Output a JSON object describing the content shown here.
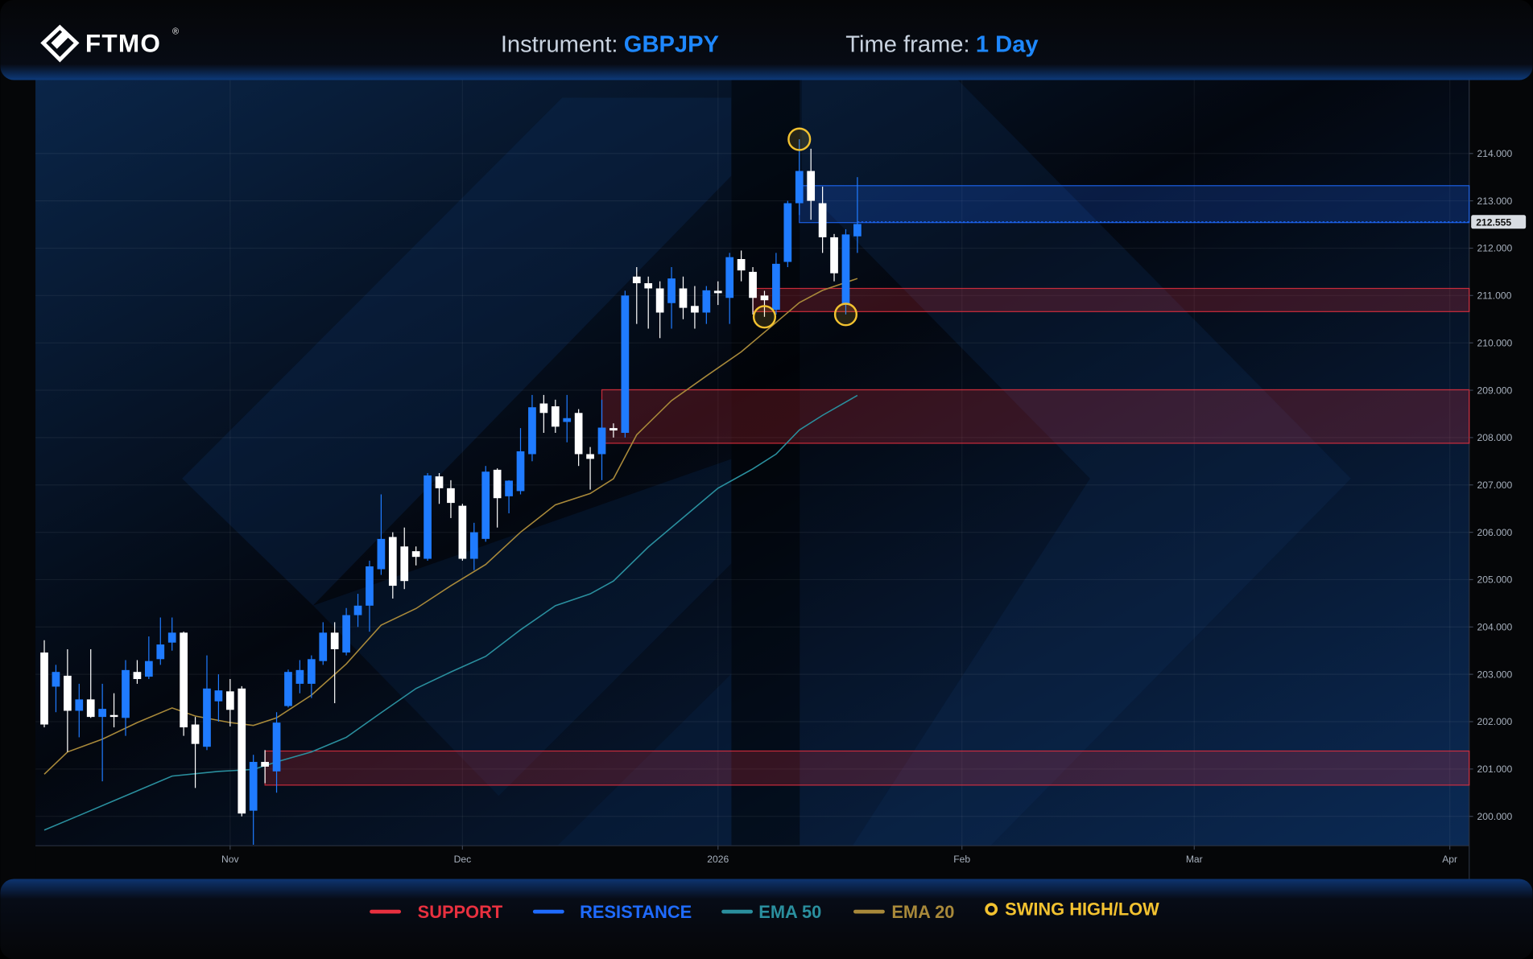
{
  "header": {
    "logo": "FTMO",
    "logo_mark": "®",
    "instrument_label": "Instrument:",
    "instrument": "GBPJPY",
    "timeframe_label": "Time frame:",
    "timeframe": "1 Day"
  },
  "chart_data": {
    "type": "candlestick",
    "up_color": "#1f7bff",
    "down_color": "#ffffff",
    "open": [
      203.46,
      202.74,
      202.97,
      202.23,
      202.47,
      202.1,
      202.14,
      202.08,
      203.05,
      202.95,
      203.32,
      203.67,
      203.88,
      201.94,
      201.47,
      202.43,
      202.64,
      202.7,
      200.12,
      201.15,
      200.95,
      202.33,
      202.8,
      202.8,
      203.28,
      203.88,
      203.46,
      204.25,
      204.45,
      205.22,
      205.9,
      205.7,
      205.6,
      205.44,
      207.18,
      206.93,
      206.56,
      205.44,
      205.86,
      207.32,
      206.76,
      206.87,
      207.65,
      208.72,
      208.66,
      208.33,
      208.52,
      207.65,
      207.65,
      208.2,
      208.1,
      211.4,
      211.26,
      211.15,
      210.84,
      211.15,
      210.78,
      210.64,
      211.1,
      210.95,
      211.77,
      211.5,
      211.0,
      210.7,
      211.71,
      212.95,
      213.63,
      212.95,
      212.23,
      210.8,
      212.25
    ],
    "high": [
      203.72,
      203.2,
      203.53,
      202.8,
      203.53,
      202.8,
      202.6,
      203.3,
      203.3,
      203.8,
      204.2,
      204.2,
      203.9,
      202.1,
      203.4,
      203.0,
      202.9,
      202.75,
      201.3,
      201.4,
      202.2,
      203.1,
      203.3,
      203.4,
      204.1,
      204.1,
      204.4,
      204.7,
      205.4,
      206.8,
      206.0,
      206.1,
      205.7,
      207.25,
      207.25,
      207.1,
      206.6,
      206.2,
      207.4,
      207.35,
      207.1,
      208.2,
      208.9,
      208.9,
      208.8,
      208.9,
      208.6,
      207.8,
      208.8,
      208.3,
      211.1,
      211.6,
      211.4,
      211.3,
      211.6,
      211.4,
      211.2,
      211.2,
      211.3,
      211.9,
      211.95,
      211.6,
      211.1,
      211.9,
      213.0,
      214.3,
      214.1,
      213.3,
      212.3,
      212.4,
      213.5
    ],
    "low": [
      201.88,
      202.2,
      201.36,
      201.67,
      202.08,
      200.74,
      201.88,
      201.7,
      202.8,
      202.9,
      203.2,
      203.5,
      201.7,
      200.6,
      201.4,
      202.0,
      201.9,
      200.0,
      199.4,
      200.7,
      200.5,
      202.3,
      202.6,
      202.5,
      203.2,
      202.39,
      203.4,
      204.0,
      203.9,
      205.1,
      204.6,
      204.8,
      205.3,
      205.4,
      206.6,
      206.3,
      205.4,
      205.2,
      205.8,
      206.1,
      206.4,
      206.8,
      207.5,
      208.1,
      208.1,
      207.9,
      207.4,
      206.9,
      207.1,
      208.0,
      208.0,
      210.4,
      210.3,
      210.1,
      210.3,
      210.5,
      210.3,
      210.4,
      210.8,
      210.4,
      211.3,
      210.6,
      210.55,
      210.6,
      211.6,
      212.7,
      212.6,
      211.9,
      211.3,
      210.6,
      211.9
    ],
    "close": [
      201.94,
      203.05,
      202.23,
      202.47,
      202.1,
      202.27,
      202.1,
      203.09,
      202.9,
      203.28,
      203.63,
      203.88,
      201.88,
      201.53,
      202.7,
      202.66,
      202.25,
      200.06,
      201.15,
      201.05,
      201.98,
      203.05,
      203.09,
      203.32,
      203.88,
      203.53,
      204.25,
      204.45,
      205.28,
      205.86,
      204.87,
      204.97,
      205.48,
      207.2,
      206.93,
      206.62,
      205.44,
      206.0,
      207.28,
      206.72,
      207.09,
      207.71,
      208.64,
      208.52,
      208.23,
      208.41,
      207.65,
      207.55,
      208.21,
      208.15,
      211.0,
      211.26,
      211.15,
      210.64,
      211.36,
      210.74,
      210.64,
      211.11,
      211.05,
      211.81,
      211.53,
      210.95,
      210.9,
      211.67,
      212.95,
      213.63,
      213.0,
      212.23,
      211.47,
      212.29,
      212.51
    ],
    "last_price": 212.555,
    "xlim": [
      -0.76,
      122.67
    ],
    "xticks": [
      {
        "value": 16,
        "label": "Nov"
      },
      {
        "value": 36,
        "label": "Dec"
      },
      {
        "value": 58,
        "label": "2026"
      },
      {
        "value": 79,
        "label": "Feb"
      },
      {
        "value": 99,
        "label": "Mar"
      },
      {
        "value": 121,
        "label": "Apr"
      }
    ],
    "ylim": [
      199.38,
      215.55
    ],
    "yticks": [
      {
        "value": 200,
        "label": "200.000"
      },
      {
        "value": 201,
        "label": "201.000"
      },
      {
        "value": 202,
        "label": "202.000"
      },
      {
        "value": 203,
        "label": "203.000"
      },
      {
        "value": 204,
        "label": "204.000"
      },
      {
        "value": 205,
        "label": "205.000"
      },
      {
        "value": 206,
        "label": "206.000"
      },
      {
        "value": 207,
        "label": "207.000"
      },
      {
        "value": 208,
        "label": "208.000"
      },
      {
        "value": 209,
        "label": "209.000"
      },
      {
        "value": 210,
        "label": "210.000"
      },
      {
        "value": 211,
        "label": "211.000"
      },
      {
        "value": 212,
        "label": "212.000"
      },
      {
        "value": 213,
        "label": "213.000"
      },
      {
        "value": 214,
        "label": "214.000"
      }
    ],
    "grid": true,
    "support": {
      "name": "SUPPORT",
      "color": "#e8303f",
      "zones": [
        {
          "x": 61,
          "range": [
            210.66,
            211.15
          ]
        },
        {
          "x": 48,
          "range": [
            207.88,
            209.01
          ]
        },
        {
          "x": 19,
          "range": [
            200.66,
            201.38
          ]
        }
      ]
    },
    "resistance": {
      "name": "RESISTANCE",
      "color": "#1f6bff",
      "zones": [
        {
          "x": 65,
          "range": [
            212.54,
            213.32
          ]
        }
      ]
    },
    "lines": [
      {
        "name": "EMA 50",
        "color": "#2a8f9e",
        "x": [
          0,
          3,
          6,
          11,
          15,
          18,
          20,
          23,
          26,
          29,
          32,
          35,
          38,
          41,
          44,
          47,
          49,
          52,
          55,
          58,
          61,
          63,
          65,
          67,
          70
        ],
        "values": [
          199.71,
          200.02,
          200.33,
          200.85,
          200.95,
          200.99,
          201.15,
          201.36,
          201.67,
          202.19,
          202.7,
          203.05,
          203.38,
          203.94,
          204.45,
          204.7,
          204.97,
          205.69,
          206.31,
          206.93,
          207.34,
          207.65,
          208.16,
          208.47,
          208.89
        ]
      },
      {
        "name": "EMA 20",
        "color": "#a8893a",
        "x": [
          0,
          2,
          5,
          8,
          11,
          13,
          16,
          18,
          20,
          23,
          26,
          29,
          32,
          35,
          38,
          41,
          44,
          47,
          49,
          51,
          54,
          57,
          60,
          63,
          65,
          67,
          70
        ],
        "values": [
          200.89,
          201.36,
          201.63,
          201.98,
          202.29,
          202.12,
          201.98,
          201.92,
          202.08,
          202.56,
          203.22,
          204.04,
          204.39,
          204.87,
          205.32,
          206.0,
          206.58,
          206.82,
          207.13,
          208.06,
          208.78,
          209.3,
          209.81,
          210.43,
          210.85,
          211.11,
          211.36
        ]
      }
    ],
    "swings": {
      "name": "SWING HIGH/LOW",
      "color": "#f2c230",
      "x": [
        65,
        62,
        69
      ],
      "values": [
        214.3,
        210.55,
        210.6
      ]
    }
  }
}
